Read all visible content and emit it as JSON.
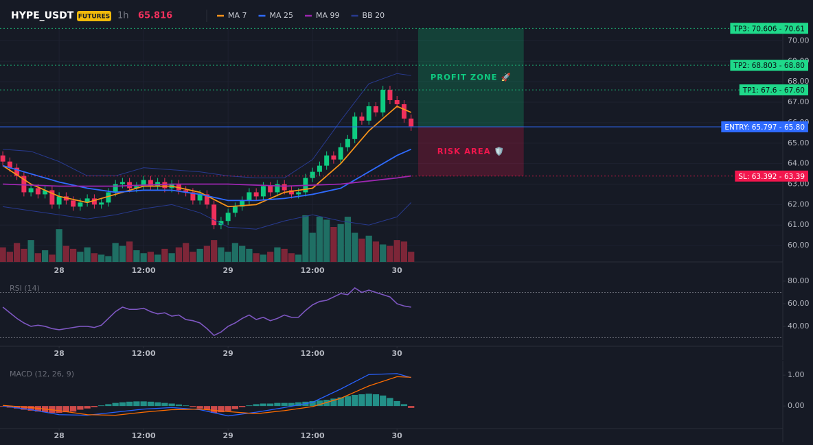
{
  "chart_data": [
    {
      "type": "candlestick",
      "title": "HYPE_USDT",
      "badge": "FUTURES",
      "interval": "1h",
      "last_price": 65.816,
      "x": [
        -8,
        -7,
        -6,
        -5,
        -4,
        -3,
        -2,
        -1,
        0,
        1,
        2,
        3,
        4,
        5,
        6,
        7,
        8,
        9,
        10,
        11,
        12,
        13,
        14,
        15,
        16,
        17,
        18,
        19,
        20,
        21,
        22,
        23,
        24,
        25,
        26,
        27,
        28,
        29,
        30,
        31,
        32,
        33,
        34,
        35,
        36,
        37,
        38,
        39,
        40,
        41,
        42,
        43,
        44,
        45,
        46,
        47,
        48,
        49,
        50
      ],
      "open": [
        64.4,
        64.1,
        63.8,
        63.4,
        62.6,
        62.8,
        62.5,
        62.7,
        62.0,
        62.4,
        62.2,
        61.9,
        62.1,
        62.3,
        62.0,
        62.1,
        62.6,
        63.0,
        63.1,
        62.8,
        62.9,
        63.2,
        62.9,
        63.1,
        62.8,
        63.0,
        62.7,
        62.6,
        62.2,
        62.5,
        62.0,
        61.0,
        61.2,
        61.6,
        61.9,
        62.2,
        62.6,
        62.4,
        62.9,
        62.6,
        63.0,
        62.7,
        62.5,
        62.6,
        63.3,
        63.6,
        63.9,
        64.4,
        64.2,
        64.8,
        65.2,
        66.3,
        66.1,
        66.8,
        66.5,
        67.6,
        67.1,
        66.9,
        66.2
      ],
      "high": [
        64.6,
        64.3,
        64.0,
        63.6,
        63.0,
        63.0,
        62.9,
        62.9,
        62.6,
        62.6,
        62.4,
        62.3,
        62.5,
        62.5,
        62.3,
        62.8,
        63.2,
        63.3,
        63.3,
        63.1,
        63.4,
        63.4,
        63.3,
        63.3,
        63.2,
        63.2,
        62.9,
        62.8,
        62.7,
        62.7,
        62.2,
        61.4,
        61.8,
        62.1,
        62.4,
        62.8,
        62.8,
        63.1,
        63.1,
        63.2,
        63.2,
        62.9,
        62.8,
        63.5,
        63.8,
        64.1,
        64.6,
        64.6,
        65.0,
        65.4,
        66.5,
        66.5,
        67.0,
        67.0,
        67.8,
        67.8,
        67.3,
        67.1,
        66.4
      ],
      "low": [
        63.9,
        63.6,
        63.2,
        62.4,
        62.4,
        62.3,
        62.3,
        61.8,
        61.8,
        62.0,
        61.7,
        61.7,
        61.9,
        61.8,
        61.8,
        61.9,
        62.4,
        62.8,
        62.6,
        62.6,
        62.7,
        62.7,
        62.7,
        62.6,
        62.6,
        62.5,
        62.4,
        62.0,
        62.0,
        61.8,
        60.8,
        60.8,
        61.0,
        61.4,
        61.7,
        62.0,
        62.2,
        62.2,
        62.4,
        62.4,
        62.5,
        62.3,
        62.3,
        62.4,
        63.1,
        63.4,
        63.7,
        64.0,
        64.0,
        64.6,
        65.0,
        65.9,
        65.9,
        66.3,
        66.3,
        66.9,
        66.7,
        66.0,
        65.6
      ],
      "close": [
        64.1,
        63.8,
        63.4,
        62.6,
        62.8,
        62.5,
        62.7,
        62.0,
        62.4,
        62.2,
        61.9,
        62.1,
        62.3,
        62.0,
        62.1,
        62.6,
        63.0,
        63.1,
        62.8,
        62.9,
        63.2,
        62.9,
        63.1,
        62.8,
        63.0,
        62.7,
        62.6,
        62.2,
        62.5,
        62.0,
        61.0,
        61.2,
        61.6,
        61.9,
        62.2,
        62.6,
        62.4,
        62.9,
        62.6,
        63.0,
        62.7,
        62.5,
        62.6,
        63.3,
        63.6,
        63.9,
        64.4,
        64.2,
        64.8,
        65.2,
        66.3,
        66.1,
        66.8,
        66.5,
        67.6,
        67.1,
        66.9,
        66.2,
        65.82
      ],
      "up_color": "#0ecb81",
      "down_color": "#f0305c",
      "volume": {
        "values": [
          20,
          14,
          26,
          18,
          30,
          12,
          16,
          10,
          45,
          22,
          18,
          14,
          20,
          12,
          10,
          8,
          26,
          22,
          28,
          16,
          12,
          14,
          10,
          18,
          12,
          20,
          26,
          14,
          18,
          22,
          30,
          20,
          14,
          26,
          22,
          18,
          12,
          10,
          14,
          20,
          18,
          12,
          10,
          64,
          40,
          62,
          58,
          48,
          52,
          62,
          40,
          32,
          36,
          28,
          24,
          22,
          30,
          28,
          14
        ],
        "up_color": "#1f6f64",
        "down_color": "#7d2638"
      },
      "series": [
        {
          "name": "MA 7",
          "color": "#f7931a",
          "x": [
            -8,
            -4,
            0,
            4,
            8,
            12,
            16,
            20,
            24,
            28,
            32,
            36,
            40,
            44,
            48,
            50
          ],
          "values": [
            63.9,
            63.0,
            62.4,
            62.1,
            62.5,
            62.9,
            62.9,
            62.6,
            61.9,
            62.0,
            62.6,
            62.8,
            64.0,
            65.6,
            66.8,
            66.5
          ]
        },
        {
          "name": "MA 25",
          "color": "#2f6bff",
          "x": [
            -8,
            -4,
            0,
            4,
            8,
            12,
            16,
            20,
            24,
            28,
            32,
            36,
            40,
            44,
            48,
            50
          ],
          "values": [
            63.9,
            63.5,
            63.1,
            62.8,
            62.6,
            62.7,
            62.7,
            62.5,
            62.2,
            62.2,
            62.3,
            62.5,
            62.8,
            63.6,
            64.4,
            64.7
          ]
        },
        {
          "name": "MA 99",
          "color": "#9c27b0",
          "x": [
            -8,
            0,
            8,
            16,
            24,
            32,
            40,
            48,
            50
          ],
          "values": [
            63.0,
            62.9,
            62.9,
            63.0,
            63.0,
            62.9,
            63.0,
            63.3,
            63.4
          ]
        },
        {
          "name": "BB 20",
          "color": "#283a8f",
          "x": [
            -8,
            -4,
            0,
            4,
            8,
            12,
            16,
            20,
            24,
            28,
            32,
            36,
            40,
            44,
            48,
            50
          ],
          "upper": [
            64.7,
            64.6,
            64.1,
            63.4,
            63.4,
            63.8,
            63.7,
            63.6,
            63.4,
            63.3,
            63.3,
            64.2,
            66.1,
            67.9,
            68.4,
            68.3
          ],
          "lower": [
            61.9,
            61.7,
            61.5,
            61.3,
            61.5,
            61.8,
            62.0,
            61.6,
            60.9,
            60.8,
            61.2,
            61.5,
            61.2,
            61.0,
            61.4,
            62.1
          ]
        }
      ],
      "levels": [
        {
          "label": "TP3: 70.606 - 70.61",
          "value": 70.606,
          "color": "#1fd98a",
          "text_color": "#0b0e14",
          "style": "dotted"
        },
        {
          "label": "TP2: 68.803 - 68.80",
          "value": 68.803,
          "color": "#1fd98a",
          "text_color": "#0b0e14",
          "style": "dotted"
        },
        {
          "label": "TP1: 67.6 - 67.60",
          "value": 67.6,
          "color": "#1fd98a",
          "text_color": "#0b0e14",
          "style": "dotted"
        },
        {
          "label": "ENTRY: 65.797 - 65.80",
          "value": 65.797,
          "color": "#2f6bff",
          "text_color": "#ffffff",
          "style": "solid"
        },
        {
          "label": "SL: 63.392 - 63.39",
          "value": 63.392,
          "color": "#f2164d",
          "text_color": "#ffffff",
          "style": "dotted"
        }
      ],
      "zones": [
        {
          "label": "PROFIT ZONE 🚀",
          "from": 65.797,
          "to": 70.606,
          "x": [
            51,
            66
          ],
          "color": "#0ecb81"
        },
        {
          "label": "RISK AREA 🛡️",
          "from": 63.392,
          "to": 65.797,
          "x": [
            51,
            66
          ],
          "color": "#f2164d"
        }
      ],
      "xlim": [
        -8.4,
        102.8
      ],
      "ylim": [
        59.2,
        70.65
      ],
      "xticks": [
        {
          "value": 0,
          "label": "28"
        },
        {
          "value": 12,
          "label": "12:00"
        },
        {
          "value": 24,
          "label": "29"
        },
        {
          "value": 36,
          "label": "12:00"
        },
        {
          "value": 48,
          "label": "30"
        }
      ],
      "yticks": [
        {
          "value": 60,
          "label": "60.00"
        },
        {
          "value": 61,
          "label": "61.00"
        },
        {
          "value": 62,
          "label": "62.00"
        },
        {
          "value": 63,
          "label": "63.00"
        },
        {
          "value": 64,
          "label": "64.00"
        },
        {
          "value": 65,
          "label": "65.00"
        },
        {
          "value": 66,
          "label": "66.00"
        },
        {
          "value": 67,
          "label": "67.00"
        },
        {
          "value": 68,
          "label": "68.00"
        },
        {
          "value": 69,
          "label": "69.00"
        },
        {
          "value": 70,
          "label": "70.00"
        }
      ],
      "grid": true
    },
    {
      "type": "line",
      "title": "RSI (14)",
      "color": "#7e57c2",
      "x": [
        -8,
        -7,
        -6,
        -5,
        -4,
        -3,
        -2,
        -1,
        0,
        1,
        2,
        3,
        4,
        5,
        6,
        7,
        8,
        9,
        10,
        11,
        12,
        13,
        14,
        15,
        16,
        17,
        18,
        19,
        20,
        21,
        22,
        23,
        24,
        25,
        26,
        27,
        28,
        29,
        30,
        31,
        32,
        33,
        34,
        35,
        36,
        37,
        38,
        39,
        40,
        41,
        42,
        43,
        44,
        45,
        46,
        47,
        48,
        49,
        50
      ],
      "values": [
        57,
        52,
        47,
        43,
        40,
        41,
        40,
        38,
        37,
        38,
        39,
        40,
        40,
        39,
        41,
        47,
        53,
        57,
        55,
        55,
        56,
        53,
        51,
        52,
        49,
        50,
        46,
        45,
        43,
        38,
        32,
        35,
        40,
        43,
        47,
        50,
        46,
        48,
        45,
        47,
        50,
        48,
        48,
        54,
        59,
        62,
        63,
        66,
        69,
        68,
        74,
        70,
        72,
        70,
        68,
        66,
        60,
        58,
        57
      ],
      "bands": [
        70,
        30
      ],
      "xlim": [
        -8.4,
        102.8
      ],
      "ylim": [
        22.4,
        83
      ],
      "xticks": [
        {
          "value": 0,
          "label": "28"
        },
        {
          "value": 12,
          "label": "12:00"
        },
        {
          "value": 24,
          "label": "29"
        },
        {
          "value": 36,
          "label": "12:00"
        },
        {
          "value": 48,
          "label": "30"
        }
      ],
      "yticks": [
        {
          "value": 40,
          "label": "40.00"
        },
        {
          "value": 60,
          "label": "60.00"
        },
        {
          "value": 80,
          "label": "80.00"
        }
      ],
      "grid": false
    },
    {
      "type": "macd",
      "title": "MACD (12, 26, 9)",
      "x": [
        -8,
        -7,
        -6,
        -5,
        -4,
        -3,
        -2,
        -1,
        0,
        1,
        2,
        3,
        4,
        5,
        6,
        7,
        8,
        9,
        10,
        11,
        12,
        13,
        14,
        15,
        16,
        17,
        18,
        19,
        20,
        21,
        22,
        23,
        24,
        25,
        26,
        27,
        28,
        29,
        30,
        31,
        32,
        33,
        34,
        35,
        36,
        37,
        38,
        39,
        40,
        41,
        42,
        43,
        44,
        45,
        46,
        47,
        48,
        49,
        50
      ],
      "histogram": {
        "values": [
          -0.02,
          -0.05,
          -0.08,
          -0.12,
          -0.15,
          -0.18,
          -0.2,
          -0.22,
          -0.22,
          -0.2,
          -0.18,
          -0.12,
          -0.08,
          -0.04,
          0.02,
          0.06,
          0.1,
          0.12,
          0.14,
          0.15,
          0.15,
          0.14,
          0.12,
          0.1,
          0.08,
          0.05,
          0.02,
          -0.03,
          -0.08,
          -0.12,
          -0.22,
          -0.2,
          -0.16,
          -0.1,
          -0.04,
          0.02,
          0.06,
          0.08,
          0.08,
          0.1,
          0.1,
          0.1,
          0.12,
          0.14,
          0.16,
          0.18,
          0.2,
          0.24,
          0.28,
          0.32,
          0.36,
          0.38,
          0.4,
          0.38,
          0.34,
          0.26,
          0.16,
          0.06,
          -0.06
        ],
        "up_color": "#26a69a",
        "down_color": "#ef5350"
      },
      "series": [
        {
          "color": "#2962ff",
          "x": [
            -8,
            -4,
            0,
            4,
            8,
            12,
            16,
            20,
            24,
            28,
            32,
            36,
            40,
            44,
            48,
            50
          ],
          "values": [
            0.0,
            -0.12,
            -0.28,
            -0.3,
            -0.2,
            -0.1,
            -0.05,
            -0.12,
            -0.32,
            -0.2,
            -0.05,
            0.12,
            0.55,
            1.02,
            1.05,
            0.92
          ]
        },
        {
          "color": "#ff6d00",
          "x": [
            -8,
            -4,
            0,
            4,
            8,
            12,
            16,
            20,
            24,
            28,
            32,
            36,
            40,
            44,
            48,
            50
          ],
          "values": [
            0.02,
            -0.05,
            -0.15,
            -0.28,
            -0.3,
            -0.2,
            -0.12,
            -0.1,
            -0.18,
            -0.25,
            -0.15,
            -0.02,
            0.25,
            0.65,
            0.95,
            0.93
          ]
        }
      ],
      "xlim": [
        -8.4,
        102.8
      ],
      "ylim": [
        -0.73,
        1.38
      ],
      "xticks": [
        {
          "value": 0,
          "label": "28"
        },
        {
          "value": 12,
          "label": "12:00"
        },
        {
          "value": 24,
          "label": "29"
        },
        {
          "value": 36,
          "label": "12:00"
        },
        {
          "value": 48,
          "label": "30"
        }
      ],
      "yticks": [
        {
          "value": 0,
          "label": "0.00"
        },
        {
          "value": 1,
          "label": "1.00"
        }
      ],
      "grid": false
    }
  ]
}
